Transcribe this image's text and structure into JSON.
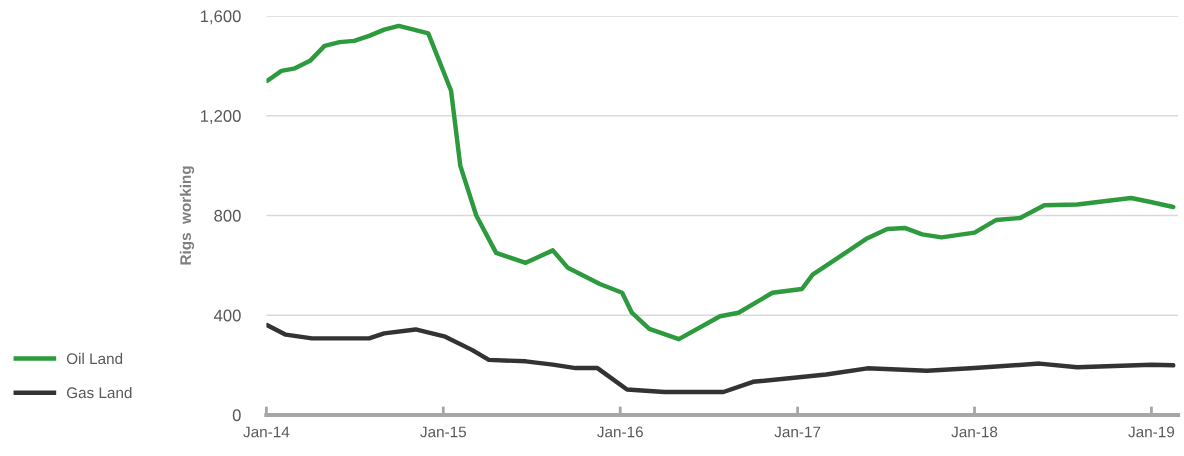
{
  "chart_data": {
    "type": "line",
    "ylabel": "Rigs  working",
    "ylim": [
      0,
      1600
    ],
    "yticks": [
      {
        "value": 0,
        "label": "0"
      },
      {
        "value": 400,
        "label": "400"
      },
      {
        "value": 800,
        "label": "800"
      },
      {
        "value": 1200,
        "label": "1,200"
      },
      {
        "value": 1600,
        "label": "1,600"
      }
    ],
    "xlim": [
      "2014-01-01",
      "2019-02-25"
    ],
    "xticks": [
      {
        "value": "2014-01-01",
        "label": "Jan-14"
      },
      {
        "value": "2015-01-01",
        "label": "Jan-15"
      },
      {
        "value": "2016-01-01",
        "label": "Jan-16"
      },
      {
        "value": "2017-01-01",
        "label": "Jan-17"
      },
      {
        "value": "2018-01-01",
        "label": "Jan-18"
      },
      {
        "value": "2019-01-01",
        "label": "Jan-19"
      }
    ],
    "grid": "y",
    "legend": "bottom left",
    "marker": "none",
    "line_style": "solid",
    "series": [
      {
        "name": "Oil Land",
        "color": "#2e9a3e",
        "x": [
          "2014-01-03",
          "2014-02-01",
          "2014-03-01",
          "2014-04-01",
          "2014-05-01",
          "2014-06-01",
          "2014-07-01",
          "2014-08-01",
          "2014-09-01",
          "2014-10-01",
          "2014-11-01",
          "2014-12-01",
          "2015-01-17",
          "2015-02-05",
          "2015-03-10",
          "2015-04-20",
          "2015-06-20",
          "2015-08-15",
          "2015-09-15",
          "2015-11-20",
          "2016-01-05",
          "2016-01-25",
          "2016-03-01",
          "2016-05-01",
          "2016-07-25",
          "2016-09-01",
          "2016-11-10",
          "2017-01-10",
          "2017-02-01",
          "2017-04-05",
          "2017-05-25",
          "2017-07-05",
          "2017-08-10",
          "2017-09-15",
          "2017-10-25",
          "2018-01-01",
          "2018-02-15",
          "2018-04-05",
          "2018-05-25",
          "2018-08-01",
          "2018-11-20",
          "2018-12-28",
          "2019-02-15"
        ],
        "values": [
          1340,
          1380,
          1390,
          1420,
          1480,
          1495,
          1500,
          1520,
          1545,
          1560,
          1545,
          1530,
          1300,
          1000,
          800,
          650,
          610,
          660,
          590,
          525,
          490,
          410,
          345,
          304,
          396,
          410,
          490,
          505,
          563,
          644,
          709,
          746,
          750,
          724,
          712,
          731,
          782,
          790,
          841,
          844,
          870,
          855,
          834
        ]
      },
      {
        "name": "Gas Land",
        "color": "#333333",
        "x": [
          "2014-01-03",
          "2014-02-10",
          "2014-04-05",
          "2014-06-05",
          "2014-08-01",
          "2014-09-01",
          "2014-11-05",
          "2015-01-05",
          "2015-03-01",
          "2015-04-05",
          "2015-06-20",
          "2015-08-15",
          "2015-10-01",
          "2015-11-15",
          "2016-01-15",
          "2016-04-01",
          "2016-08-01",
          "2016-10-01",
          "2017-03-01",
          "2017-05-25",
          "2017-09-25",
          "2018-01-01",
          "2018-05-15",
          "2018-08-01",
          "2019-01-01",
          "2019-02-15"
        ],
        "values": [
          360,
          322,
          307,
          307,
          307,
          327,
          343,
          314,
          261,
          221,
          215,
          202,
          188,
          188,
          102,
          92,
          92,
          133,
          162,
          187,
          177,
          188,
          206,
          191,
          201,
          199
        ]
      }
    ]
  }
}
